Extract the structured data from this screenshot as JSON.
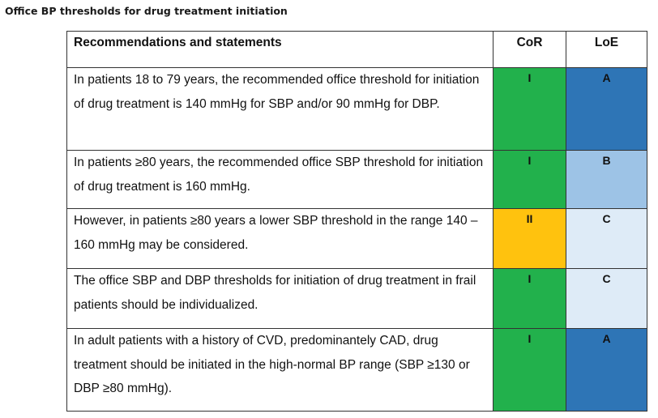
{
  "title": "Office BP thresholds for drug treatment initiation",
  "table": {
    "headers": {
      "statements": "Recommendations and statements",
      "cor": "CoR",
      "loe": "LoE"
    },
    "rows": [
      {
        "statement": "In patients 18 to 79 years, the recommended office threshold for initiation of drug treatment is 140 mmHg for SBP and/or 90 mmHg for DBP.",
        "cor": "I",
        "loe": "A"
      },
      {
        "statement": "In patients ≥80 years, the recommended office SBP threshold for initiation of drug treatment is 160 mmHg.",
        "cor": "I",
        "loe": "B"
      },
      {
        "statement": "However, in patients ≥80 years a lower SBP threshold in the range 140 – 160 mmHg may be considered.",
        "cor": "II",
        "loe": "C"
      },
      {
        "statement": "The office SBP and DBP thresholds for initiation of drug treatment in frail patients should be individualized.",
        "cor": "I",
        "loe": "C"
      },
      {
        "statement": "In adult patients with a history of CVD, predominantely CAD, drug treatment should be initiated in the high-normal BP range (SBP ≥130 or DBP ≥80 mmHg).",
        "cor": "I",
        "loe": "A"
      }
    ]
  },
  "colors": {
    "cor_I": "#22b14c",
    "cor_II": "#ffc20e",
    "loe_A": "#2e75b6",
    "loe_B": "#9dc3e6",
    "loe_C": "#deebf7"
  }
}
